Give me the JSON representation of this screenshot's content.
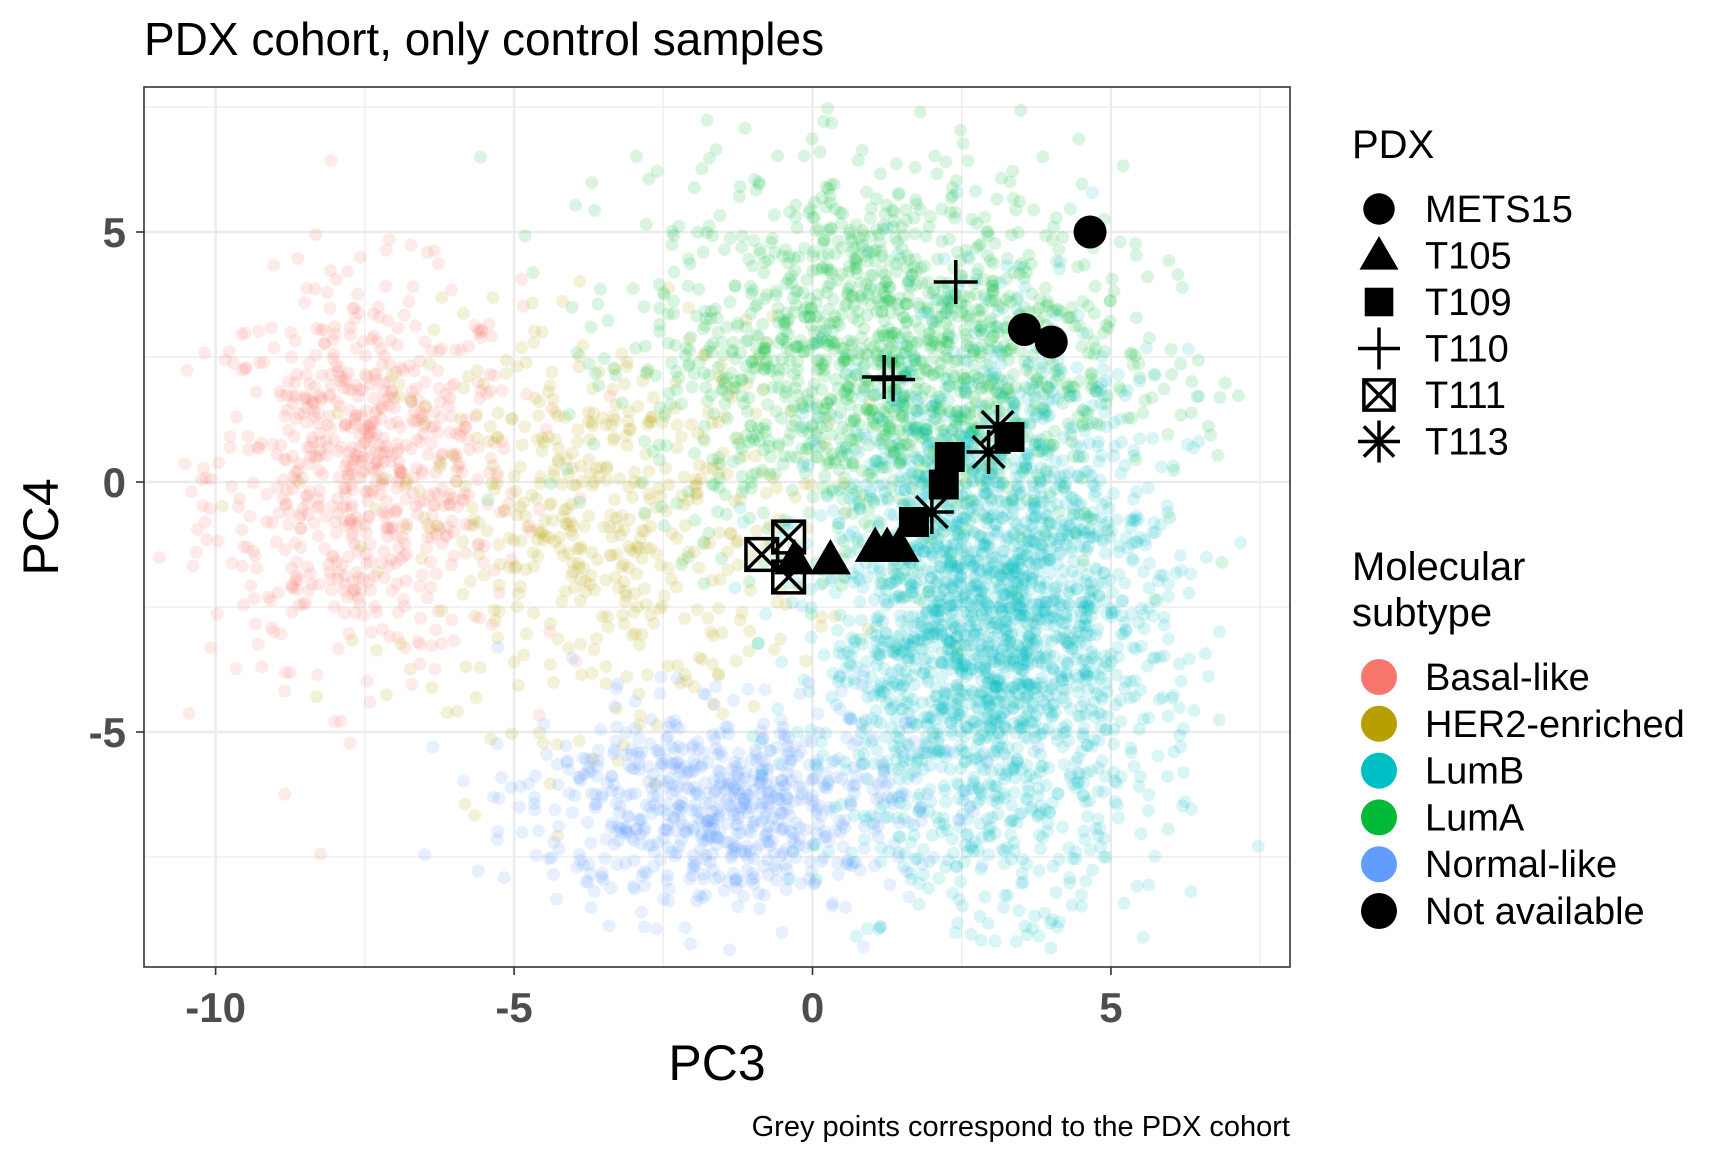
{
  "chart_data": {
    "type": "scatter",
    "title": "PDX cohort, only control samples",
    "xlabel": "PC3",
    "ylabel": "PC4",
    "caption": "Grey points correspond to the PDX cohort",
    "xlim": [
      -11.2,
      8.0
    ],
    "ylim": [
      -9.7,
      7.9
    ],
    "x_ticks": [
      -10,
      -5,
      0,
      5
    ],
    "y_ticks": [
      -5,
      0,
      5
    ],
    "x_tick_labels": [
      "-10",
      "-5",
      "0",
      "5"
    ],
    "y_tick_labels": [
      "-5",
      "0",
      "5"
    ],
    "grid": true,
    "legend_placement": "right",
    "background_point_opacity": 0.15,
    "subtype_legend": {
      "title_line1": "Molecular",
      "title_line2": "subtype",
      "entries": [
        {
          "label": "Basal-like",
          "color": "#F8766D"
        },
        {
          "label": "HER2-enriched",
          "color": "#B79F00"
        },
        {
          "label": "LumB",
          "color": "#00BFC4"
        },
        {
          "label": "LumA",
          "color": "#00BA38"
        },
        {
          "label": "Normal-like",
          "color": "#619CFF"
        },
        {
          "label": "Not available",
          "color": "#000000"
        }
      ]
    },
    "subtype_clusters": [
      {
        "subtype": "Basal-like",
        "color": "#F8766D",
        "center": [
          -7.5,
          0.2
        ],
        "spread": [
          1.3,
          1.9
        ],
        "count": 700
      },
      {
        "subtype": "HER2-enriched",
        "color": "#B79F00",
        "center": [
          -3.5,
          -0.8
        ],
        "spread": [
          1.7,
          2.0
        ],
        "count": 500
      },
      {
        "subtype": "LumA",
        "color": "#00BA38",
        "center": [
          1.2,
          2.5
        ],
        "spread": [
          2.0,
          1.9
        ],
        "count": 1500
      },
      {
        "subtype": "LumB",
        "color": "#00BFC4",
        "center": [
          3.0,
          -2.8
        ],
        "spread": [
          1.4,
          2.6
        ],
        "count": 2400
      },
      {
        "subtype": "Normal-like",
        "color": "#619CFF",
        "center": [
          -1.5,
          -6.5
        ],
        "spread": [
          1.6,
          1.0
        ],
        "count": 700
      }
    ],
    "pdx_legend": {
      "title": "PDX",
      "entries": [
        {
          "label": "METS15",
          "shape": "circle"
        },
        {
          "label": "T105",
          "shape": "triangle"
        },
        {
          "label": "T109",
          "shape": "square"
        },
        {
          "label": "T110",
          "shape": "plus"
        },
        {
          "label": "T111",
          "shape": "boxed-x"
        },
        {
          "label": "T113",
          "shape": "asterisk"
        }
      ]
    },
    "pdx_points": [
      {
        "model": "METS15",
        "shape": "circle",
        "x": 4.65,
        "y": 5.0
      },
      {
        "model": "METS15",
        "shape": "circle",
        "x": 3.55,
        "y": 3.05
      },
      {
        "model": "METS15",
        "shape": "circle",
        "x": 4.0,
        "y": 2.8
      },
      {
        "model": "T105",
        "shape": "triangle",
        "x": -0.3,
        "y": -1.55
      },
      {
        "model": "T105",
        "shape": "triangle",
        "x": 0.3,
        "y": -1.55
      },
      {
        "model": "T105",
        "shape": "triangle",
        "x": 1.05,
        "y": -1.3
      },
      {
        "model": "T105",
        "shape": "triangle",
        "x": 1.25,
        "y": -1.3
      },
      {
        "model": "T105",
        "shape": "triangle",
        "x": 1.45,
        "y": -1.3
      },
      {
        "model": "T109",
        "shape": "square",
        "x": 1.7,
        "y": -0.8
      },
      {
        "model": "T109",
        "shape": "square",
        "x": 2.2,
        "y": -0.05
      },
      {
        "model": "T109",
        "shape": "square",
        "x": 2.3,
        "y": 0.5
      },
      {
        "model": "T109",
        "shape": "square",
        "x": 3.3,
        "y": 0.9
      },
      {
        "model": "T110",
        "shape": "plus",
        "x": 2.4,
        "y": 4.0
      },
      {
        "model": "T110",
        "shape": "plus",
        "x": 1.2,
        "y": 2.1
      },
      {
        "model": "T110",
        "shape": "plus",
        "x": 1.35,
        "y": 2.05
      },
      {
        "model": "T111",
        "shape": "boxed-x",
        "x": -0.85,
        "y": -1.45
      },
      {
        "model": "T111",
        "shape": "boxed-x",
        "x": -0.4,
        "y": -1.1
      },
      {
        "model": "T111",
        "shape": "boxed-x",
        "x": -0.4,
        "y": -1.9
      },
      {
        "model": "T113",
        "shape": "asterisk",
        "x": 2.0,
        "y": -0.6
      },
      {
        "model": "T113",
        "shape": "asterisk",
        "x": 2.95,
        "y": 0.6
      },
      {
        "model": "T113",
        "shape": "asterisk",
        "x": 3.1,
        "y": 1.1
      }
    ]
  }
}
